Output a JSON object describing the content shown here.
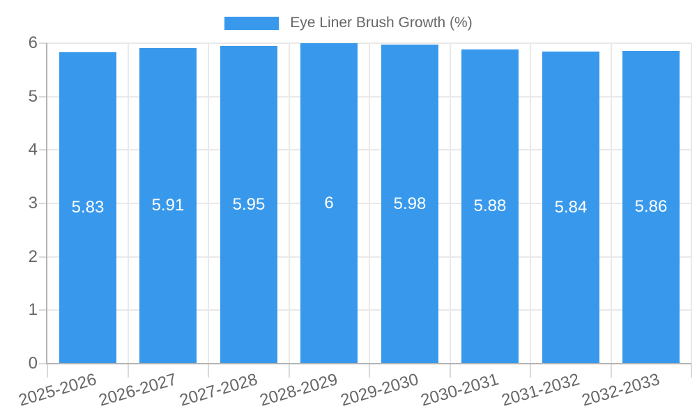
{
  "chart_data": {
    "type": "bar",
    "title": "Eye Liner Brush Growth (%)",
    "legend_position": "top",
    "grid": true,
    "categories": [
      "2025-2026",
      "2026-2027",
      "2027-2028",
      "2028-2029",
      "2029-2030",
      "2030-2031",
      "2031-2032",
      "2032-2033"
    ],
    "values": [
      5.83,
      5.91,
      5.95,
      6,
      5.98,
      5.88,
      5.84,
      5.86
    ],
    "value_labels": [
      "5.83",
      "5.91",
      "5.95",
      "6",
      "5.98",
      "5.88",
      "5.84",
      "5.86"
    ],
    "ylim": [
      0,
      6
    ],
    "yticks": [
      0,
      1,
      2,
      3,
      4,
      5,
      6
    ],
    "ytick_labels": [
      "0",
      "1",
      "2",
      "3",
      "4",
      "5",
      "6"
    ],
    "xlabel": "",
    "ylabel": "",
    "colors": {
      "bar": "#3899EC",
      "grid": "#E9E9E9",
      "tick": "#D9D9D9",
      "axis": "#B3B3B3",
      "tick_text": "#666666",
      "value_text": "#FFFFFF",
      "legend_text": "#666666"
    }
  }
}
